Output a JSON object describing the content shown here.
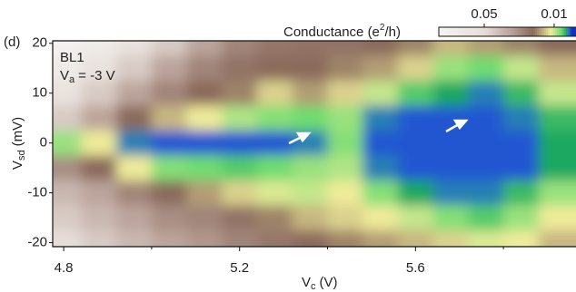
{
  "chart_data": {
    "type": "heatmap",
    "panel_label": "(d)",
    "annotation": "BL1",
    "condition": [
      "V",
      "a",
      "= -3 V"
    ],
    "x_label": [
      "V",
      "c",
      "(V)"
    ],
    "y_label": [
      "V",
      "sd",
      "(mV)"
    ],
    "colorbar_label": [
      "Conductance (e",
      "2",
      "/h)"
    ],
    "x": [
      4.8,
      4.88,
      4.96,
      5.04,
      5.12,
      5.2,
      5.28,
      5.36,
      5.44,
      5.52,
      5.6,
      5.68,
      5.76,
      5.84,
      5.92
    ],
    "y": [
      20,
      15,
      10,
      5,
      0,
      -5,
      -10,
      -15,
      -20
    ],
    "z": [
      [
        0.072,
        0.065,
        0.055,
        0.045,
        0.035,
        0.028,
        0.025,
        0.024,
        0.024,
        0.022,
        0.02,
        0.016,
        0.018,
        0.02,
        0.022
      ],
      [
        0.065,
        0.055,
        0.045,
        0.035,
        0.028,
        0.024,
        0.022,
        0.022,
        0.02,
        0.018,
        0.014,
        0.008,
        0.006,
        0.01,
        0.016
      ],
      [
        0.055,
        0.045,
        0.035,
        0.028,
        0.022,
        0.02,
        0.014,
        0.018,
        0.014,
        0.01,
        0.005,
        0.003,
        0.002,
        0.004,
        0.01
      ],
      [
        0.045,
        0.035,
        0.022,
        0.016,
        0.012,
        0.009,
        0.007,
        0.006,
        0.008,
        0.002,
        0.001,
        0.001,
        0.001,
        0.002,
        0.004
      ],
      [
        0.008,
        0.012,
        0.002,
        0.001,
        0.001,
        0.001,
        0.001,
        0.002,
        0.007,
        0.001,
        0.001,
        0.001,
        0.001,
        0.001,
        0.003
      ],
      [
        0.03,
        0.022,
        0.012,
        0.007,
        0.006,
        0.005,
        0.006,
        0.008,
        0.009,
        0.002,
        0.001,
        0.001,
        0.001,
        0.001,
        0.003
      ],
      [
        0.04,
        0.035,
        0.028,
        0.022,
        0.018,
        0.014,
        0.011,
        0.01,
        0.012,
        0.007,
        0.003,
        0.002,
        0.002,
        0.004,
        0.008
      ],
      [
        0.045,
        0.04,
        0.035,
        0.03,
        0.028,
        0.024,
        0.02,
        0.016,
        0.014,
        0.012,
        0.01,
        0.007,
        0.005,
        0.008,
        0.012
      ],
      [
        0.05,
        0.045,
        0.04,
        0.035,
        0.032,
        0.028,
        0.025,
        0.022,
        0.02,
        0.018,
        0.016,
        0.014,
        0.011,
        0.012,
        0.016
      ]
    ],
    "xlim": [
      4.775,
      5.965
    ],
    "ylim": [
      -20.8,
      20.5
    ],
    "xticks": [
      4.8,
      5.2,
      5.6
    ],
    "xminor": [
      5.0,
      5.4,
      5.8
    ],
    "yticks": [
      20,
      10,
      0,
      -10,
      -20
    ],
    "clim": [
      0.076,
      -0.0025
    ],
    "cticks": [
      0.05,
      0.01
    ],
    "colormap": [
      {
        "value": 0.076,
        "color": "#f6f4f2"
      },
      {
        "value": 0.05,
        "color": "#e6ded9"
      },
      {
        "value": 0.035,
        "color": "#bba49b"
      },
      {
        "value": 0.022,
        "color": "#8a6a5c"
      },
      {
        "value": 0.012,
        "color": "#efeb9a"
      },
      {
        "value": 0.006,
        "color": "#6fdc70"
      },
      {
        "value": 0.003,
        "color": "#1fa860"
      },
      {
        "value": 0.0015,
        "color": "#2a6ae0"
      },
      {
        "value": 0,
        "color": "#1432b4"
      }
    ]
  }
}
